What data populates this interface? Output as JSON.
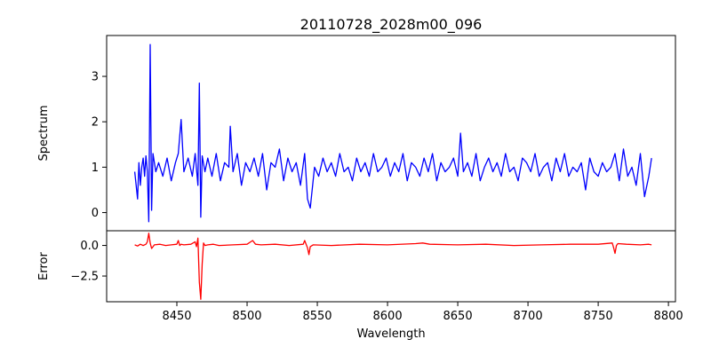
{
  "chart_data": [
    {
      "panel": "spectrum",
      "type": "line",
      "title": "20110728_2028m00_096",
      "xlabel": "",
      "ylabel": "Spectrum",
      "xlim": [
        8400,
        8805
      ],
      "ylim": [
        -0.4,
        3.9
      ],
      "xticks": [],
      "yticks": [
        0,
        1,
        2,
        3
      ],
      "grid": false,
      "color": "#0000ff",
      "series": [
        {
          "x": [
            8420,
            8422,
            8423,
            8424,
            8425,
            8426,
            8427,
            8428,
            8429,
            8430,
            8431,
            8432,
            8433,
            8435,
            8437,
            8440,
            8443,
            8446,
            8449,
            8451,
            8453,
            8455,
            8458,
            8461,
            8463,
            8465,
            8466,
            8467,
            8468,
            8470,
            8472,
            8475,
            8478,
            8481,
            8484,
            8487,
            8488,
            8490,
            8493,
            8496,
            8499,
            8502,
            8505,
            8508,
            8511,
            8514,
            8517,
            8520,
            8523,
            8526,
            8529,
            8532,
            8535,
            8538,
            8541,
            8543,
            8545,
            8548,
            8551,
            8554,
            8557,
            8560,
            8563,
            8566,
            8569,
            8572,
            8575,
            8578,
            8581,
            8584,
            8587,
            8590,
            8593,
            8596,
            8599,
            8602,
            8605,
            8608,
            8611,
            8614,
            8617,
            8620,
            8623,
            8626,
            8629,
            8632,
            8635,
            8638,
            8641,
            8644,
            8647,
            8650,
            8652,
            8654,
            8657,
            8660,
            8663,
            8666,
            8669,
            8672,
            8675,
            8678,
            8681,
            8684,
            8687,
            8690,
            8693,
            8696,
            8699,
            8702,
            8705,
            8708,
            8711,
            8714,
            8717,
            8720,
            8723,
            8726,
            8729,
            8732,
            8735,
            8738,
            8741,
            8744,
            8747,
            8750,
            8753,
            8756,
            8759,
            8762,
            8765,
            8768,
            8771,
            8774,
            8777,
            8780,
            8783,
            8786,
            8788
          ],
          "y": [
            0.9,
            0.3,
            1.1,
            0.6,
            1.0,
            1.2,
            0.8,
            1.25,
            0.9,
            -0.2,
            3.7,
            0.05,
            1.3,
            0.9,
            1.1,
            0.8,
            1.2,
            0.7,
            1.1,
            1.3,
            2.05,
            0.9,
            1.2,
            0.8,
            1.3,
            0.6,
            2.85,
            -0.1,
            1.25,
            0.9,
            1.2,
            0.8,
            1.3,
            0.7,
            1.1,
            1.0,
            1.9,
            0.9,
            1.3,
            0.6,
            1.1,
            0.9,
            1.2,
            0.8,
            1.3,
            0.5,
            1.1,
            1.0,
            1.4,
            0.7,
            1.2,
            0.9,
            1.1,
            0.6,
            1.3,
            0.3,
            0.1,
            1.0,
            0.8,
            1.2,
            0.9,
            1.1,
            0.8,
            1.3,
            0.9,
            1.0,
            0.7,
            1.2,
            0.9,
            1.1,
            0.8,
            1.3,
            0.9,
            1.0,
            1.2,
            0.8,
            1.1,
            0.9,
            1.3,
            0.7,
            1.1,
            1.0,
            0.8,
            1.2,
            0.9,
            1.3,
            0.7,
            1.1,
            0.9,
            1.0,
            1.2,
            0.8,
            1.75,
            0.9,
            1.1,
            0.8,
            1.3,
            0.7,
            1.0,
            1.2,
            0.9,
            1.1,
            0.8,
            1.3,
            0.9,
            1.0,
            0.7,
            1.2,
            1.1,
            0.9,
            1.3,
            0.8,
            1.0,
            1.1,
            0.7,
            1.2,
            0.9,
            1.3,
            0.8,
            1.0,
            0.9,
            1.1,
            0.5,
            1.2,
            0.9,
            0.8,
            1.1,
            0.9,
            1.0,
            1.3,
            0.7,
            1.4,
            0.8,
            1.0,
            0.6,
            1.3,
            0.35,
            0.8,
            1.2
          ]
        }
      ]
    },
    {
      "panel": "error",
      "type": "line",
      "title": "",
      "xlabel": "Wavelength",
      "ylabel": "Error",
      "xlim": [
        8400,
        8805
      ],
      "ylim": [
        -4.6,
        1.2
      ],
      "xticks": [
        8450,
        8500,
        8550,
        8600,
        8650,
        8700,
        8750,
        8800
      ],
      "yticks": [
        0.0,
        -2.5
      ],
      "ytick_labels": [
        "0.0",
        "−2.5"
      ],
      "grid": false,
      "color": "#ff0000",
      "series": [
        {
          "x": [
            8420,
            8422,
            8424,
            8426,
            8428,
            8429,
            8430,
            8431,
            8432,
            8434,
            8438,
            8442,
            8446,
            8450,
            8451,
            8452,
            8453,
            8455,
            8460,
            8463,
            8464,
            8465,
            8466,
            8467,
            8468,
            8469,
            8470,
            8472,
            8476,
            8480,
            8490,
            8500,
            8504,
            8506,
            8510,
            8520,
            8530,
            8540,
            8541,
            8543,
            8544,
            8545,
            8547,
            8560,
            8580,
            8600,
            8620,
            8625,
            8630,
            8650,
            8670,
            8690,
            8710,
            8730,
            8750,
            8760,
            8761,
            8762,
            8763,
            8764,
            8770,
            8780,
            8786,
            8788
          ],
          "y": [
            0.05,
            -0.05,
            0.1,
            0.0,
            0.1,
            0.3,
            1.0,
            0.2,
            -0.25,
            0.05,
            0.1,
            0.0,
            0.05,
            0.1,
            0.4,
            0.0,
            0.1,
            0.05,
            0.1,
            0.3,
            -0.1,
            0.6,
            -3.0,
            -4.4,
            -1.5,
            0.2,
            0.0,
            0.05,
            0.1,
            0.0,
            0.05,
            0.1,
            0.4,
            0.1,
            0.05,
            0.1,
            0.0,
            0.1,
            0.4,
            -0.2,
            -0.75,
            -0.1,
            0.05,
            0.0,
            0.1,
            0.05,
            0.15,
            0.2,
            0.1,
            0.05,
            0.1,
            0.0,
            0.05,
            0.1,
            0.1,
            0.2,
            -0.2,
            -0.65,
            0.0,
            0.15,
            0.1,
            0.05,
            0.1,
            0.05
          ]
        }
      ]
    }
  ]
}
